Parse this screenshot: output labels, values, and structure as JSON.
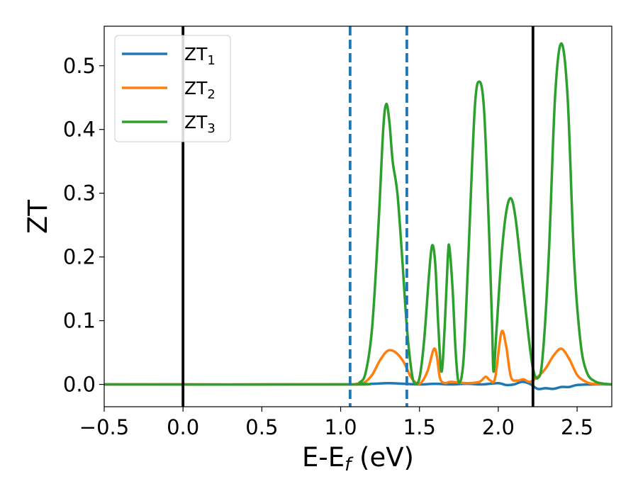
{
  "chart_data": {
    "type": "line",
    "title": "",
    "xlabel": {
      "main": "E-E",
      "sub": "f",
      "unit": " (eV)"
    },
    "ylabel": "ZT",
    "xlim": [
      -0.5,
      2.72
    ],
    "ylim": [
      -0.035,
      0.562
    ],
    "x_ticks": [
      {
        "value": -0.5,
        "label": "−0.5"
      },
      {
        "value": 0.0,
        "label": "0.0"
      },
      {
        "value": 0.5,
        "label": "0.5"
      },
      {
        "value": 1.0,
        "label": "1.0"
      },
      {
        "value": 1.5,
        "label": "1.5"
      },
      {
        "value": 2.0,
        "label": "2.0"
      },
      {
        "value": 2.5,
        "label": "2.5"
      }
    ],
    "y_ticks": [
      {
        "value": 0.0,
        "label": "0.0"
      },
      {
        "value": 0.1,
        "label": "0.1"
      },
      {
        "value": 0.2,
        "label": "0.2"
      },
      {
        "value": 0.3,
        "label": "0.3"
      },
      {
        "value": 0.4,
        "label": "0.4"
      },
      {
        "value": 0.5,
        "label": "0.5"
      }
    ],
    "grid": false,
    "legend_position": "top-left",
    "vertical_lines": [
      {
        "x": 0.0,
        "style": "solid",
        "color": "#000000"
      },
      {
        "x": 2.22,
        "style": "solid",
        "color": "#000000"
      },
      {
        "x": 1.06,
        "style": "dashed",
        "color": "#1f77b4"
      },
      {
        "x": 1.42,
        "style": "dashed",
        "color": "#1f77b4"
      }
    ],
    "series": [
      {
        "name": "ZT",
        "sub": "1",
        "color": "#1f77b4",
        "points": [
          [
            -0.5,
            0.0
          ],
          [
            1.0,
            0.0
          ],
          [
            1.2,
            0.001
          ],
          [
            1.3,
            0.002
          ],
          [
            1.4,
            0.001
          ],
          [
            1.5,
            0.0
          ],
          [
            1.6,
            0.001
          ],
          [
            1.7,
            0.0
          ],
          [
            1.8,
            0.001
          ],
          [
            1.9,
            0.0
          ],
          [
            2.0,
            0.002
          ],
          [
            2.05,
            -0.001
          ],
          [
            2.1,
            0.0
          ],
          [
            2.15,
            0.004
          ],
          [
            2.2,
            0.001
          ],
          [
            2.25,
            -0.007
          ],
          [
            2.3,
            -0.006
          ],
          [
            2.35,
            -0.007
          ],
          [
            2.4,
            -0.004
          ],
          [
            2.45,
            -0.004
          ],
          [
            2.5,
            -0.001
          ],
          [
            2.6,
            0.0
          ],
          [
            2.72,
            0.0
          ]
        ]
      },
      {
        "name": "ZT",
        "sub": "2",
        "color": "#ff7f0e",
        "points": [
          [
            -0.5,
            0.0
          ],
          [
            1.05,
            0.0
          ],
          [
            1.1,
            0.001
          ],
          [
            1.15,
            0.003
          ],
          [
            1.2,
            0.015
          ],
          [
            1.25,
            0.038
          ],
          [
            1.3,
            0.053
          ],
          [
            1.35,
            0.05
          ],
          [
            1.4,
            0.035
          ],
          [
            1.45,
            0.01
          ],
          [
            1.5,
            0.001
          ],
          [
            1.55,
            0.02
          ],
          [
            1.59,
            0.055
          ],
          [
            1.61,
            0.045
          ],
          [
            1.63,
            0.01
          ],
          [
            1.66,
            0.002
          ],
          [
            1.7,
            0.004
          ],
          [
            1.8,
            0.002
          ],
          [
            1.88,
            0.004
          ],
          [
            1.92,
            0.012
          ],
          [
            1.95,
            0.006
          ],
          [
            1.98,
            0.01
          ],
          [
            2.02,
            0.082
          ],
          [
            2.05,
            0.06
          ],
          [
            2.08,
            0.012
          ],
          [
            2.12,
            0.006
          ],
          [
            2.16,
            0.008
          ],
          [
            2.2,
            0.004
          ],
          [
            2.25,
            0.012
          ],
          [
            2.3,
            0.025
          ],
          [
            2.35,
            0.045
          ],
          [
            2.4,
            0.056
          ],
          [
            2.45,
            0.04
          ],
          [
            2.5,
            0.015
          ],
          [
            2.55,
            0.005
          ],
          [
            2.6,
            0.001
          ],
          [
            2.72,
            0.0
          ]
        ]
      },
      {
        "name": "ZT",
        "sub": "3",
        "color": "#2ca02c",
        "points": [
          [
            -0.5,
            0.0
          ],
          [
            1.05,
            0.0
          ],
          [
            1.12,
            0.003
          ],
          [
            1.16,
            0.02
          ],
          [
            1.2,
            0.09
          ],
          [
            1.24,
            0.25
          ],
          [
            1.27,
            0.4
          ],
          [
            1.29,
            0.44
          ],
          [
            1.31,
            0.41
          ],
          [
            1.33,
            0.35
          ],
          [
            1.36,
            0.3
          ],
          [
            1.39,
            0.2
          ],
          [
            1.42,
            0.09
          ],
          [
            1.45,
            0.02
          ],
          [
            1.47,
            0.002
          ],
          [
            1.5,
            0.01
          ],
          [
            1.53,
            0.07
          ],
          [
            1.56,
            0.17
          ],
          [
            1.58,
            0.218
          ],
          [
            1.6,
            0.19
          ],
          [
            1.62,
            0.09
          ],
          [
            1.64,
            0.02
          ],
          [
            1.66,
            0.09
          ],
          [
            1.68,
            0.2
          ],
          [
            1.69,
            0.215
          ],
          [
            1.71,
            0.15
          ],
          [
            1.73,
            0.05
          ],
          [
            1.75,
            0.003
          ],
          [
            1.78,
            0.04
          ],
          [
            1.81,
            0.2
          ],
          [
            1.85,
            0.43
          ],
          [
            1.88,
            0.475
          ],
          [
            1.91,
            0.43
          ],
          [
            1.94,
            0.25
          ],
          [
            1.96,
            0.1
          ],
          [
            1.97,
            0.02
          ],
          [
            1.99,
            0.09
          ],
          [
            2.02,
            0.2
          ],
          [
            2.05,
            0.27
          ],
          [
            2.08,
            0.292
          ],
          [
            2.11,
            0.26
          ],
          [
            2.15,
            0.17
          ],
          [
            2.19,
            0.08
          ],
          [
            2.22,
            0.025
          ],
          [
            2.25,
            0.01
          ],
          [
            2.28,
            0.04
          ],
          [
            2.32,
            0.2
          ],
          [
            2.36,
            0.45
          ],
          [
            2.4,
            0.535
          ],
          [
            2.44,
            0.45
          ],
          [
            2.48,
            0.2
          ],
          [
            2.52,
            0.07
          ],
          [
            2.56,
            0.02
          ],
          [
            2.62,
            0.004
          ],
          [
            2.72,
            0.0
          ]
        ]
      }
    ]
  }
}
